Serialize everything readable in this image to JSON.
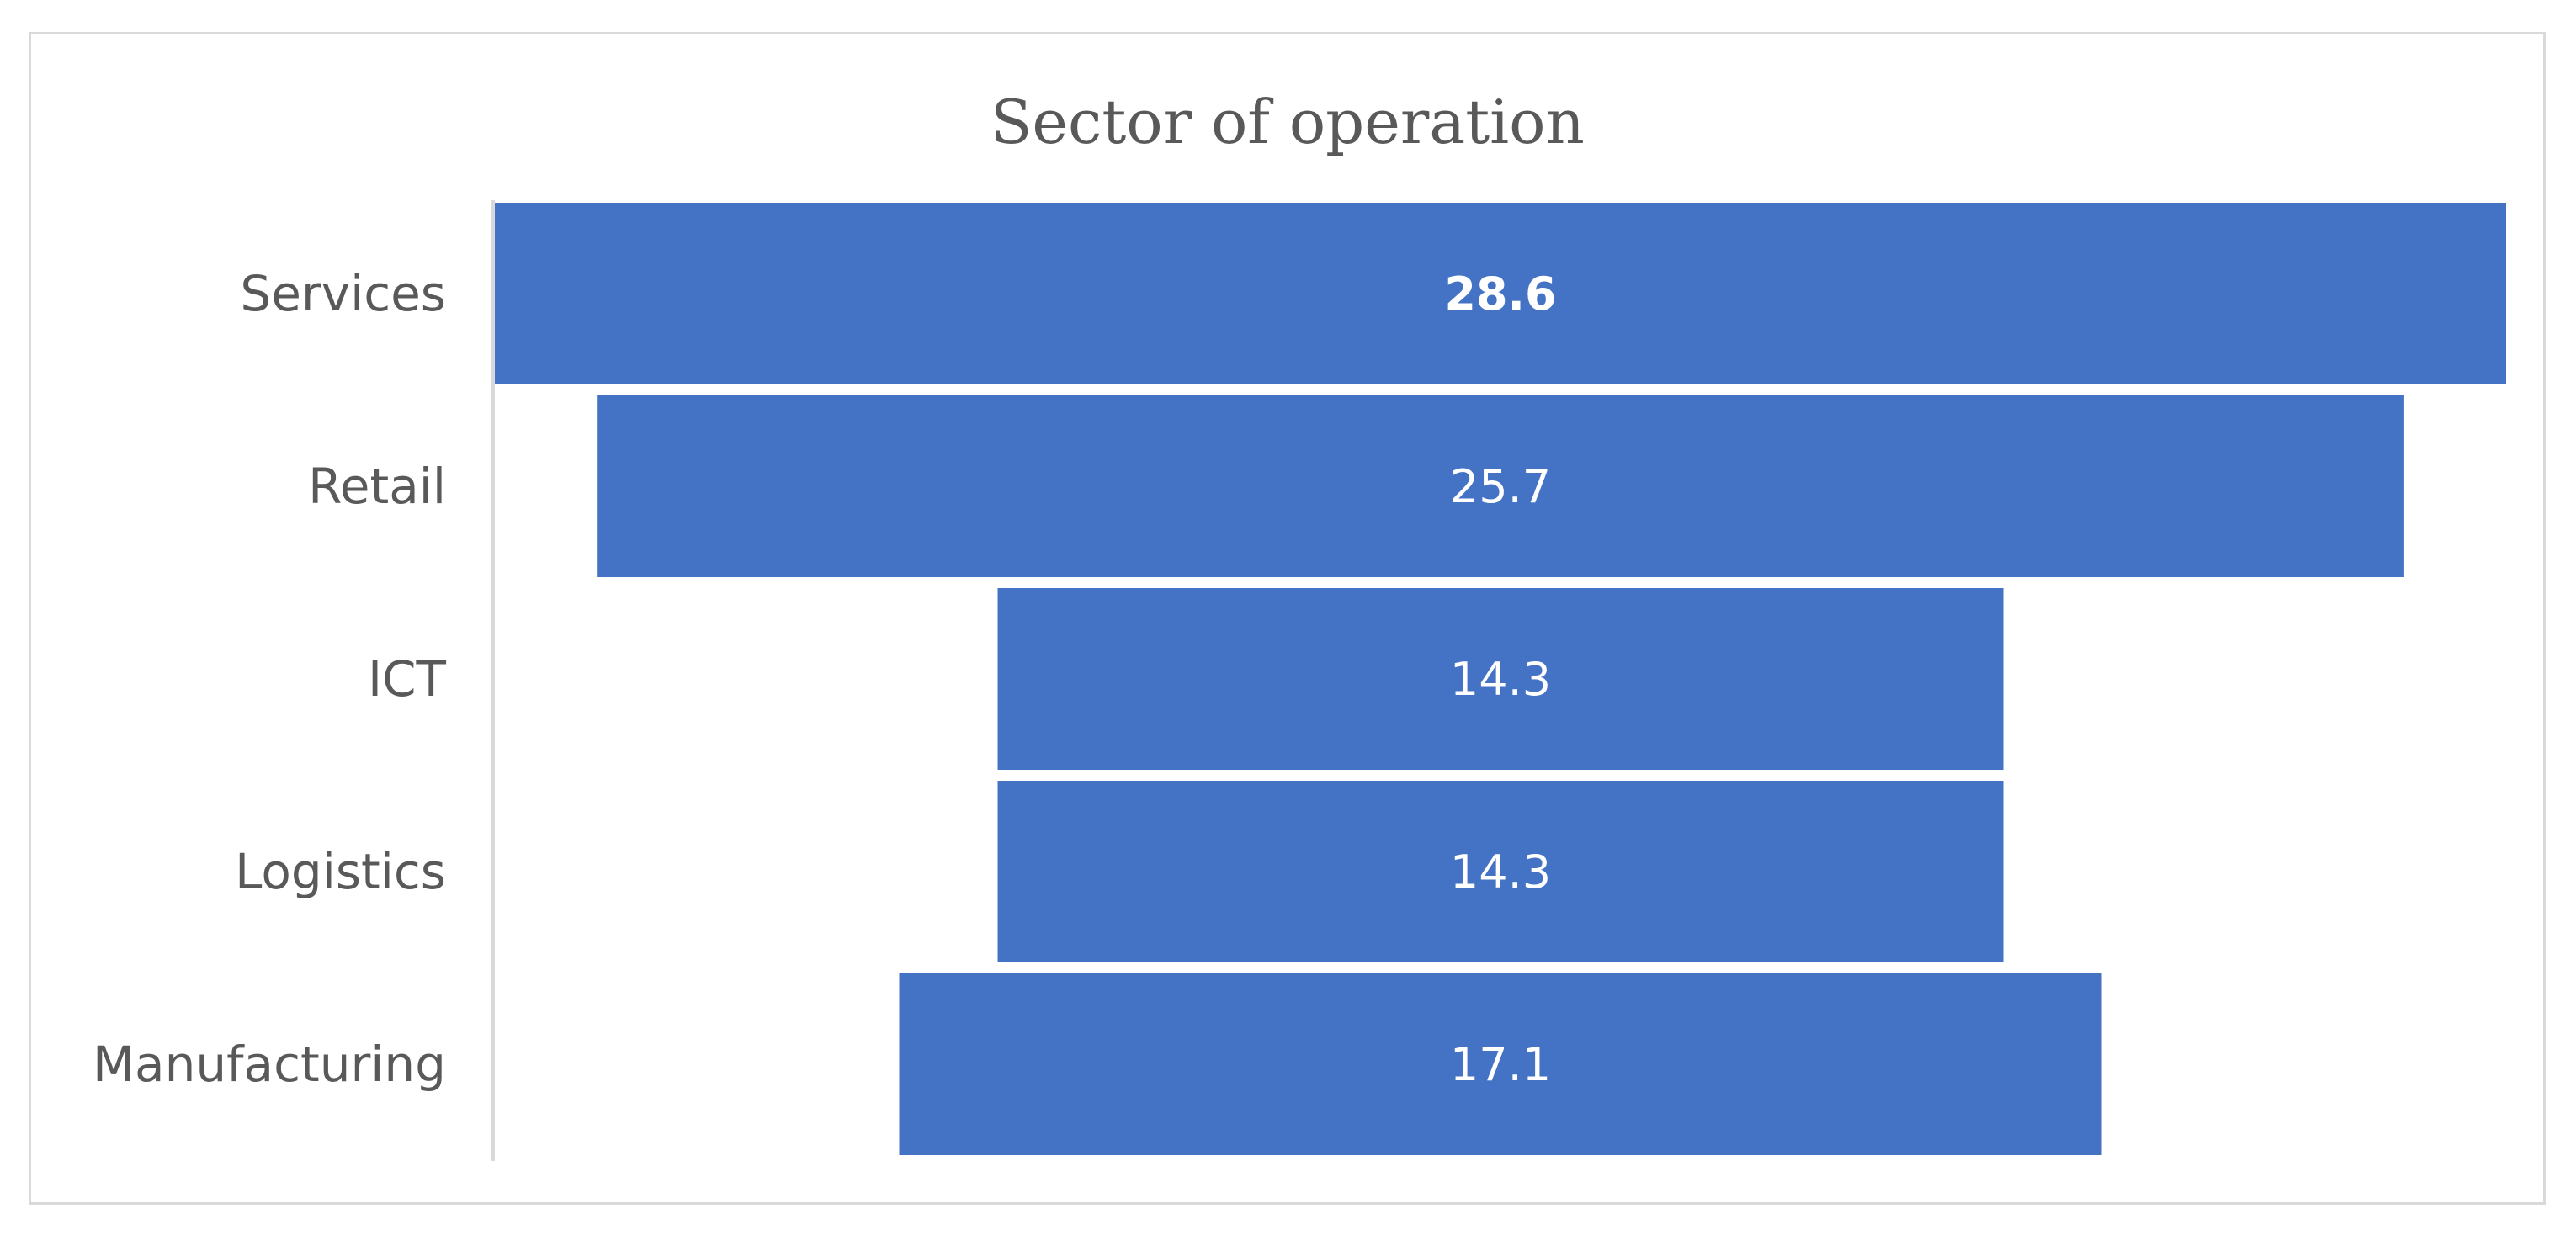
{
  "chart_data": {
    "type": "bar",
    "subtype": "funnel",
    "orientation": "horizontal",
    "title": "Sector of operation",
    "categories": [
      "Services",
      "Retail",
      "ICT",
      "Logistics",
      "Manufacturing"
    ],
    "values": [
      28.6,
      25.7,
      14.3,
      14.3,
      17.1
    ],
    "value_labels": [
      "28.6",
      "25.7",
      "14.3",
      "14.3",
      "17.1"
    ],
    "bar_color": "#4472c4",
    "label_color": "#ffffff",
    "category_label_color": "#595959",
    "axis_color": "#d9d9d9",
    "grid": false,
    "legend": "none",
    "bold_label_index": 0
  }
}
